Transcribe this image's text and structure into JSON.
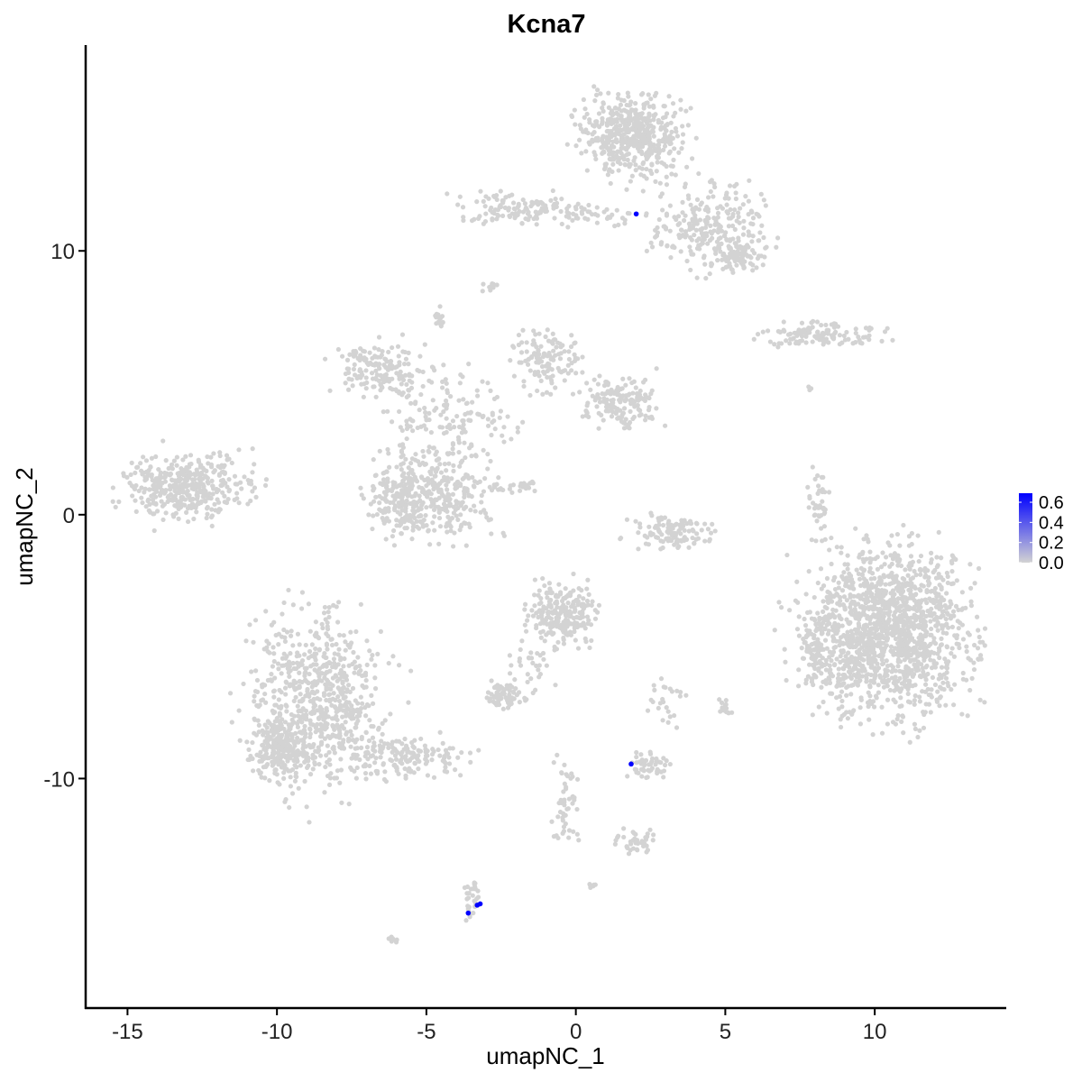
{
  "chart_data": {
    "type": "scatter",
    "title": "Kcna7",
    "xlabel": "umapNC_1",
    "ylabel": "umapNC_2",
    "xlim": [
      -16.4,
      14.4
    ],
    "ylim": [
      -18.7,
      17.8
    ],
    "xticks": [
      -15,
      -10,
      -5,
      0,
      5,
      10
    ],
    "yticks": [
      -10,
      0,
      10
    ],
    "xtick_labels": [
      "-15",
      "-10",
      "-5",
      "0",
      "5",
      "10"
    ],
    "ytick_labels": [
      "-10",
      "0",
      "10"
    ],
    "grid": false,
    "colors": {
      "low": "#d3d3d3",
      "high": "#0000ff"
    },
    "legend": {
      "position": "right",
      "type": "colorbar",
      "range": [
        0,
        0.69
      ],
      "ticks": [
        0.0,
        0.2,
        0.4,
        0.6
      ],
      "tick_labels": [
        "0.0",
        "0.2",
        "0.4",
        "0.6"
      ]
    },
    "background_clusters": [
      {
        "x": 1.84,
        "y": 14.37,
        "sx": 1.36,
        "sy": 1.2,
        "n": 500
      },
      {
        "x": 4.52,
        "y": 10.95,
        "sx": 1.5,
        "sy": 1.3,
        "n": 250
      },
      {
        "x": 5.44,
        "y": 9.76,
        "sx": 0.6,
        "sy": 0.5,
        "n": 80
      },
      {
        "x": -1.8,
        "y": 11.6,
        "sx": 1.66,
        "sy": 0.5,
        "n": 120
      },
      {
        "x": 0.62,
        "y": 11.3,
        "sx": 1.2,
        "sy": 0.3,
        "n": 40
      },
      {
        "x": -2.84,
        "y": 8.67,
        "sx": 0.2,
        "sy": 0.15,
        "n": 10
      },
      {
        "x": -4.57,
        "y": 7.47,
        "sx": 0.2,
        "sy": 0.3,
        "n": 15
      },
      {
        "x": 8.16,
        "y": 6.86,
        "sx": 1.6,
        "sy": 0.35,
        "n": 120
      },
      {
        "x": -6.62,
        "y": 5.5,
        "sx": 1.2,
        "sy": 0.85,
        "n": 150
      },
      {
        "x": -4.2,
        "y": 3.8,
        "sx": 1.8,
        "sy": 1.4,
        "n": 150
      },
      {
        "x": -0.89,
        "y": 5.84,
        "sx": 0.9,
        "sy": 1.0,
        "n": 120
      },
      {
        "x": 1.52,
        "y": 4.3,
        "sx": 1.05,
        "sy": 0.85,
        "n": 150
      },
      {
        "x": -4.8,
        "y": 0.9,
        "sx": 1.5,
        "sy": 1.5,
        "n": 350
      },
      {
        "x": -6.0,
        "y": 0.38,
        "sx": 0.9,
        "sy": 1.0,
        "n": 100
      },
      {
        "x": -12.95,
        "y": 1.06,
        "sx": 1.66,
        "sy": 1.0,
        "n": 400
      },
      {
        "x": -2.1,
        "y": 1.06,
        "sx": 0.9,
        "sy": 0.2,
        "n": 30
      },
      {
        "x": 3.33,
        "y": -0.65,
        "sx": 1.2,
        "sy": 0.5,
        "n": 120
      },
      {
        "x": 8.16,
        "y": 0.38,
        "sx": 0.3,
        "sy": 1.0,
        "n": 40
      },
      {
        "x": 10.42,
        "y": -4.4,
        "sx": 2.2,
        "sy": 2.5,
        "n": 1500
      },
      {
        "x": 8.0,
        "y": -5.1,
        "sx": 0.3,
        "sy": 1.2,
        "n": 60
      },
      {
        "x": -0.44,
        "y": -3.72,
        "sx": 0.9,
        "sy": 1.0,
        "n": 250
      },
      {
        "x": -1.5,
        "y": -5.77,
        "sx": 0.6,
        "sy": 1.2,
        "n": 40
      },
      {
        "x": -2.4,
        "y": -6.86,
        "sx": 0.45,
        "sy": 0.35,
        "n": 60
      },
      {
        "x": -8.58,
        "y": -7.13,
        "sx": 1.8,
        "sy": 2.7,
        "n": 700
      },
      {
        "x": -9.9,
        "y": -8.84,
        "sx": 0.75,
        "sy": 1.0,
        "n": 200
      },
      {
        "x": -5.7,
        "y": -9.2,
        "sx": 1.6,
        "sy": 0.6,
        "n": 150
      },
      {
        "x": 2.37,
        "y": -9.5,
        "sx": 0.6,
        "sy": 0.4,
        "n": 50
      },
      {
        "x": -0.29,
        "y": -10.9,
        "sx": 0.4,
        "sy": 1.2,
        "n": 50
      },
      {
        "x": 1.97,
        "y": -12.4,
        "sx": 0.6,
        "sy": 0.35,
        "n": 40
      },
      {
        "x": -3.45,
        "y": -14.5,
        "sx": 0.25,
        "sy": 0.6,
        "n": 30
      },
      {
        "x": 3.0,
        "y": -7.1,
        "sx": 0.5,
        "sy": 1.0,
        "n": 25
      },
      {
        "x": 5.0,
        "y": -7.3,
        "sx": 0.2,
        "sy": 0.3,
        "n": 15
      },
      {
        "x": -6.1,
        "y": -16.1,
        "sx": 0.15,
        "sy": 0.1,
        "n": 8
      },
      {
        "x": 0.53,
        "y": -14.06,
        "sx": 0.15,
        "sy": 0.1,
        "n": 6
      },
      {
        "x": 7.86,
        "y": 4.8,
        "sx": 0.1,
        "sy": 0.1,
        "n": 3
      }
    ],
    "expressed_points": [
      {
        "x": 2.02,
        "y": 11.4,
        "value": 0.69
      },
      {
        "x": 1.85,
        "y": -9.45,
        "value": 0.69
      },
      {
        "x": -3.2,
        "y": -14.75,
        "value": 0.69
      },
      {
        "x": -3.3,
        "y": -14.8,
        "value": 0.69
      },
      {
        "x": -3.6,
        "y": -15.1,
        "value": 0.69
      }
    ]
  }
}
